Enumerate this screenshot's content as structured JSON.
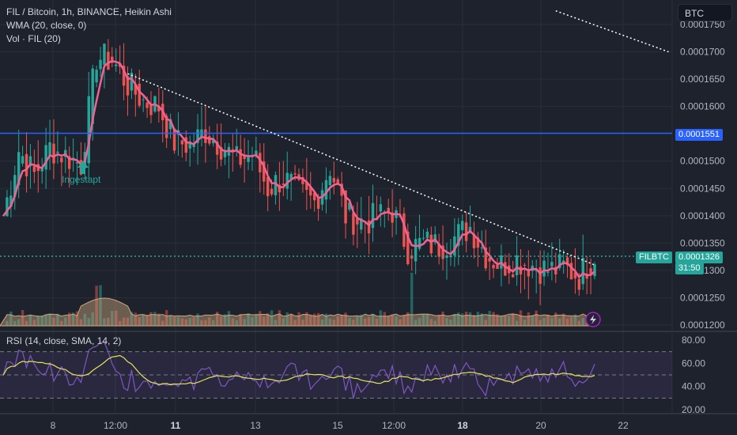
{
  "header": {
    "symbol_title": "FIL / Bitcoin, 1h, BINANCE, Heikin Ashi",
    "wma_label": "WMA (20, close, 0)",
    "vol_label": "Vol · FIL (20)",
    "currency_button": "BTC"
  },
  "price_axis": {
    "ticks": [
      "0.0001750",
      "0.0001700",
      "0.0001650",
      "0.0001600",
      "0.0001500",
      "0.0001450",
      "0.0001400",
      "0.0001350",
      "0.0001300",
      "0.0001250",
      "0.0001200"
    ],
    "horizontal_line_value": "0.0001551",
    "last_price_value": "0.0001326",
    "last_price_symbol": "FILBTC",
    "countdown": "31:50"
  },
  "rsi": {
    "label": "RSI (14, close, SMA, 14, 2)",
    "ticks": [
      "80.00",
      "60.00",
      "40.00",
      "20.00"
    ],
    "upper_band": 70,
    "mid_band": 50,
    "lower_band": 30
  },
  "time_axis": {
    "ticks": [
      "8",
      "12:00",
      "11",
      "13",
      "15",
      "12:00",
      "18",
      "20",
      "22"
    ]
  },
  "annotation": {
    "buy_label": "Ingestapt"
  },
  "colors": {
    "background": "#1e222d",
    "up": "#26a69a",
    "down": "#ef5350",
    "wma": "#f06292",
    "blue_line": "#2962ff",
    "rsi_line": "#7e57c2",
    "rsi_sma": "#e5e55a",
    "volume_ma": "#c9a77c"
  },
  "chart_data": {
    "type": "candlestick",
    "price_range": [
      0.00012,
      0.000178
    ],
    "horizontal_line": 0.0001551,
    "last_price": 0.0001326,
    "price_path": [
      [
        0,
        0.00014
      ],
      [
        4,
        0.000152
      ],
      [
        8,
        0.0001475
      ],
      [
        12,
        0.0001525
      ],
      [
        16,
        0.000151
      ],
      [
        20,
        0.0001495
      ],
      [
        24,
        0.000169
      ],
      [
        28,
        0.0001685
      ],
      [
        32,
        0.000164
      ],
      [
        36,
        0.000161
      ],
      [
        40,
        0.00016
      ],
      [
        44,
        0.0001535
      ],
      [
        48,
        0.000153
      ],
      [
        52,
        0.0001555
      ],
      [
        56,
        0.000153
      ],
      [
        60,
        0.00015
      ],
      [
        64,
        0.0001515
      ],
      [
        68,
        0.000145
      ],
      [
        72,
        0.000147
      ],
      [
        76,
        0.000144
      ],
      [
        80,
        0.0001425
      ],
      [
        84,
        0.000149
      ],
      [
        88,
        0.00014
      ],
      [
        92,
        0.000139
      ],
      [
        96,
        0.0001395
      ],
      [
        100,
        0.000141
      ],
      [
        104,
        0.000134
      ],
      [
        108,
        0.000135
      ],
      [
        112,
        0.0001345
      ],
      [
        116,
        0.000136
      ],
      [
        120,
        0.000138
      ],
      [
        124,
        0.000133
      ],
      [
        128,
        0.000131
      ],
      [
        132,
        0.000132
      ],
      [
        136,
        0.000131
      ],
      [
        140,
        0.00013
      ],
      [
        144,
        0.0001305
      ],
      [
        148,
        0.000129
      ],
      [
        152,
        0.000133
      ]
    ],
    "trendlines": [
      {
        "from": [
          32,
          0.000166
        ],
        "to": [
          152,
          0.000131
        ]
      },
      {
        "from": [
          142,
          0.0001775
        ],
        "to": [
          171,
          0.00017
        ]
      }
    ],
    "rsi_range": [
      20,
      80
    ]
  }
}
